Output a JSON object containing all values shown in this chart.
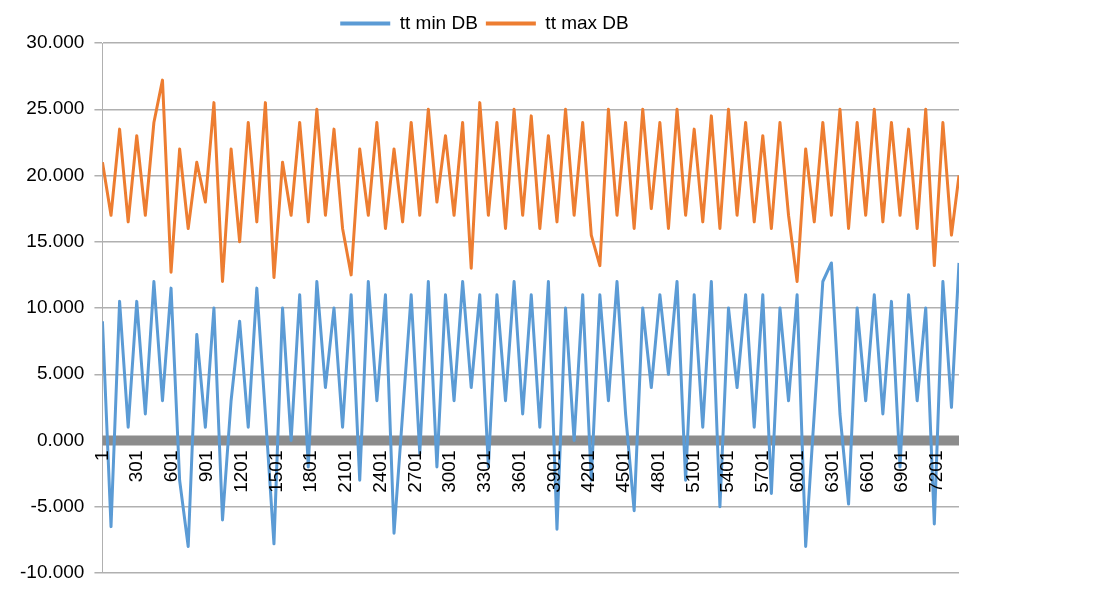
{
  "chart_data": {
    "type": "line",
    "x": [
      1,
      75,
      149,
      223,
      297,
      371,
      445,
      519,
      593,
      667,
      741,
      815,
      889,
      963,
      1037,
      1111,
      1185,
      1259,
      1333,
      1407,
      1481,
      1555,
      1629,
      1703,
      1777,
      1851,
      1925,
      1999,
      2073,
      2147,
      2221,
      2295,
      2369,
      2443,
      2517,
      2591,
      2665,
      2739,
      2813,
      2887,
      2961,
      3035,
      3109,
      3183,
      3257,
      3331,
      3405,
      3479,
      3553,
      3627,
      3701,
      3775,
      3849,
      3923,
      3997,
      4071,
      4145,
      4219,
      4293,
      4367,
      4441,
      4515,
      4589,
      4663,
      4737,
      4811,
      4885,
      4959,
      5033,
      5107,
      5181,
      5255,
      5329,
      5403,
      5477,
      5551,
      5625,
      5699,
      5773,
      5847,
      5921,
      5995,
      6069,
      6143,
      6217,
      6291,
      6365,
      6439,
      6513,
      6587,
      6661,
      6735,
      6809,
      6883,
      6957,
      7031,
      7105,
      7179,
      7253,
      7327,
      7392
    ],
    "series": [
      {
        "name": "tt min DB",
        "color": "#5b9bd5",
        "values": [
          9,
          -6.5,
          10.5,
          1,
          10.5,
          2,
          12,
          3,
          11.5,
          -3,
          -8,
          8,
          1,
          10,
          -6,
          3,
          9,
          1,
          11.5,
          2,
          -7.8,
          10,
          0,
          11,
          -2,
          12,
          4,
          10,
          1,
          11,
          -3,
          12,
          3,
          11,
          -7,
          2,
          11,
          -1,
          12,
          -2,
          11,
          3,
          12,
          4,
          11,
          -2,
          11,
          3,
          12,
          2,
          11,
          1,
          12,
          -6.7,
          10,
          0,
          11,
          -3,
          11,
          3,
          12,
          2,
          -5.3,
          10,
          4,
          11,
          5,
          12,
          -3,
          11,
          1,
          12,
          -5,
          10,
          4,
          11,
          1,
          11,
          -4,
          10,
          3,
          11,
          -8,
          2,
          12,
          13.4,
          2,
          -4.8,
          10,
          3,
          11,
          2,
          10.5,
          -2,
          11,
          3,
          10,
          -6.3,
          12,
          2.5,
          13.4
        ]
      },
      {
        "name": "tt max DB",
        "color": "#ed7d31",
        "values": [
          21,
          17,
          23.5,
          16.5,
          23,
          17,
          24,
          27.2,
          12.7,
          22,
          16,
          21,
          18,
          25.5,
          12,
          22,
          15,
          24,
          16.5,
          25.5,
          12.3,
          21,
          17,
          24,
          16.5,
          25,
          17,
          23.5,
          16,
          12.5,
          22,
          17,
          24,
          16,
          22,
          16.5,
          24,
          17,
          25,
          18,
          23,
          17,
          24,
          13,
          25.5,
          17,
          24,
          16,
          25,
          17,
          24.5,
          16,
          23,
          16.5,
          25,
          17,
          24,
          15.5,
          13.2,
          25,
          17,
          24,
          16,
          25,
          17.5,
          24,
          16,
          25,
          17,
          23.5,
          16.5,
          24.5,
          16,
          25,
          17,
          24,
          16.5,
          23,
          16,
          24,
          17,
          12,
          22,
          16.5,
          24,
          17,
          25,
          16,
          24,
          17,
          25,
          16.5,
          24,
          17,
          23.5,
          16,
          25,
          13.2,
          24,
          15.5,
          20
        ]
      }
    ],
    "xlim": [
      1,
      7392
    ],
    "xticks": [
      1,
      301,
      601,
      901,
      1201,
      1501,
      1801,
      2101,
      2401,
      2701,
      3001,
      3301,
      3601,
      3901,
      4201,
      4501,
      4801,
      5101,
      5401,
      5701,
      6001,
      6301,
      6601,
      6901,
      7201
    ],
    "ylim": [
      -10,
      30
    ],
    "yticks": [
      {
        "value": -10,
        "label": "-10.000"
      },
      {
        "value": -5,
        "label": "-5.000"
      },
      {
        "value": 0,
        "label": "0.000"
      },
      {
        "value": 5,
        "label": "5.000"
      },
      {
        "value": 10,
        "label": "10.000"
      },
      {
        "value": 15,
        "label": "15.000"
      },
      {
        "value": 20,
        "label": "20.000"
      },
      {
        "value": 25,
        "label": "25.000"
      },
      {
        "value": 30,
        "label": "30.000"
      }
    ],
    "grid": "y",
    "legend": "top",
    "marker": "none",
    "line_style": "solid"
  }
}
